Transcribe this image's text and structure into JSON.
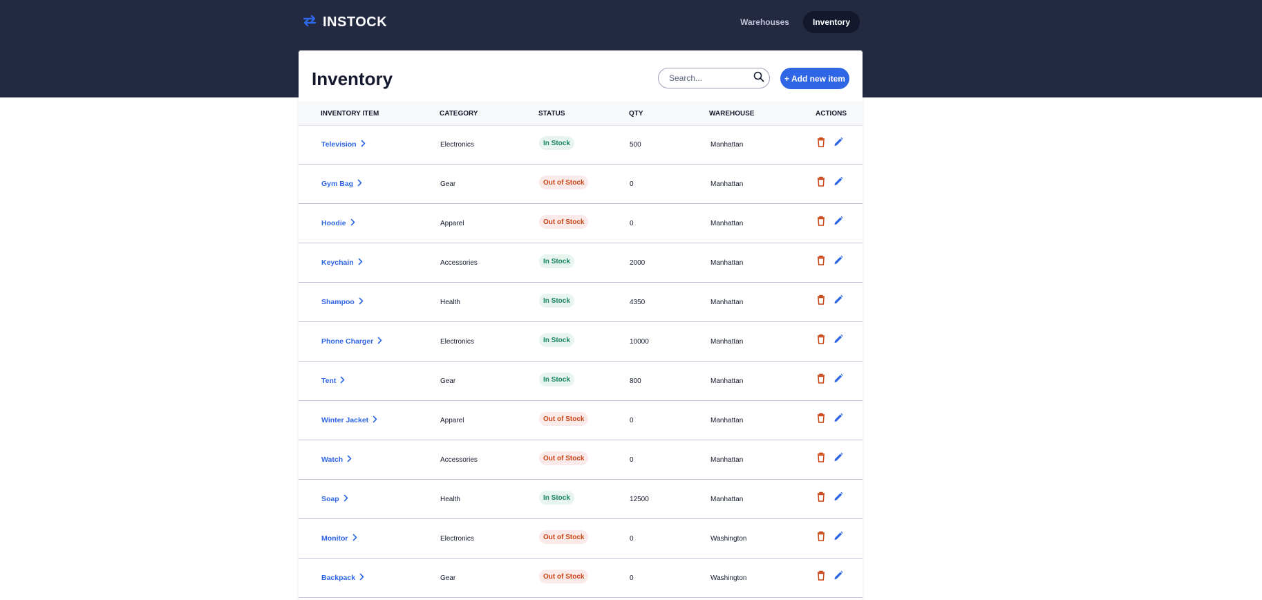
{
  "app": {
    "name": "INSTOCK",
    "logo_icon": "swap-arrows-icon",
    "brand_color": "#2e66e6"
  },
  "nav": {
    "items": [
      {
        "label": "Warehouses",
        "active": false
      },
      {
        "label": "Inventory",
        "active": true
      }
    ]
  },
  "page": {
    "title": "Inventory",
    "search_placeholder": "Search...",
    "add_button_label": "+ Add new item"
  },
  "table": {
    "headers": [
      "INVENTORY ITEM",
      "CATEGORY",
      "STATUS",
      "QTY",
      "WAREHOUSE",
      "ACTIONS"
    ],
    "rows": [
      {
        "item": "Television",
        "category": "Electronics",
        "status": "In Stock",
        "qty": "500",
        "warehouse": "Manhattan"
      },
      {
        "item": "Gym Bag",
        "category": "Gear",
        "status": "Out of Stock",
        "qty": "0",
        "warehouse": "Manhattan"
      },
      {
        "item": "Hoodie",
        "category": "Apparel",
        "status": "Out of Stock",
        "qty": "0",
        "warehouse": "Manhattan"
      },
      {
        "item": "Keychain",
        "category": "Accessories",
        "status": "In Stock",
        "qty": "2000",
        "warehouse": "Manhattan"
      },
      {
        "item": "Shampoo",
        "category": "Health",
        "status": "In Stock",
        "qty": "4350",
        "warehouse": "Manhattan"
      },
      {
        "item": "Phone Charger",
        "category": "Electronics",
        "status": "In Stock",
        "qty": "10000",
        "warehouse": "Manhattan"
      },
      {
        "item": "Tent",
        "category": "Gear",
        "status": "In Stock",
        "qty": "800",
        "warehouse": "Manhattan"
      },
      {
        "item": "Winter Jacket",
        "category": "Apparel",
        "status": "Out of Stock",
        "qty": "0",
        "warehouse": "Manhattan"
      },
      {
        "item": "Watch",
        "category": "Accessories",
        "status": "Out of Stock",
        "qty": "0",
        "warehouse": "Manhattan"
      },
      {
        "item": "Soap",
        "category": "Health",
        "status": "In Stock",
        "qty": "12500",
        "warehouse": "Manhattan"
      },
      {
        "item": "Monitor",
        "category": "Electronics",
        "status": "Out of Stock",
        "qty": "0",
        "warehouse": "Washington"
      },
      {
        "item": "Backpack",
        "category": "Gear",
        "status": "Out of Stock",
        "qty": "0",
        "warehouse": "Washington"
      }
    ]
  },
  "colors": {
    "header_bg": "#232940",
    "in_stock_text": "#158463",
    "in_stock_bg": "#e7f5ee",
    "out_of_stock_text": "#c94515",
    "out_of_stock_bg": "#fbeaea",
    "delete_icon": "#c94515",
    "edit_icon": "#2e66e6"
  }
}
